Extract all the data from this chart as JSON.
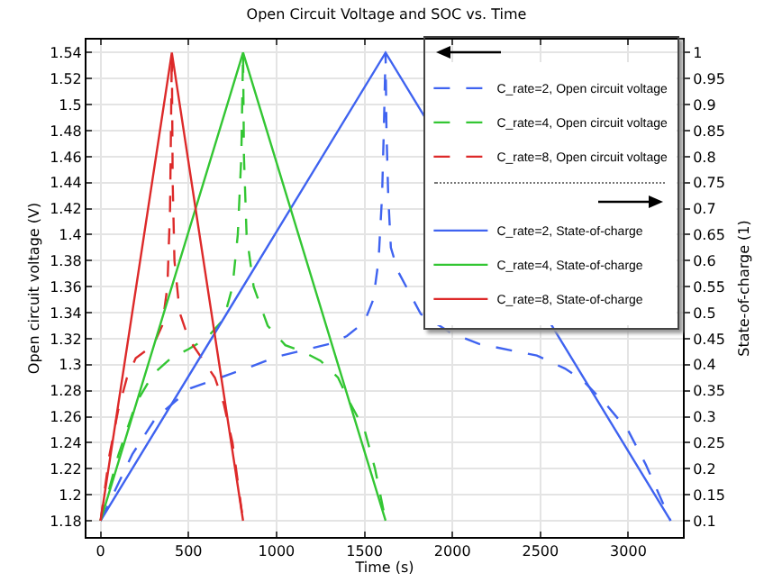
{
  "chart_data": {
    "type": "line",
    "title": "Open Circuit Voltage and SOC vs. Time",
    "xlabel": "Time (s)",
    "ylabel": "Open circuit voltage (V)",
    "y2label": "State-of-charge (1)",
    "xlim": [
      -80,
      3310
    ],
    "xticks": [
      0,
      500,
      1000,
      1500,
      2000,
      2500,
      3000
    ],
    "ylim": [
      1.1675,
      1.55
    ],
    "yticks": [
      1.18,
      1.2,
      1.22,
      1.24,
      1.26,
      1.28,
      1.3,
      1.32,
      1.34,
      1.36,
      1.38,
      1.4,
      1.42,
      1.44,
      1.46,
      1.48,
      1.5,
      1.52,
      1.54
    ],
    "y2lim": [
      0.06875,
      1.025
    ],
    "y2ticks": [
      0.1,
      0.15,
      0.2,
      0.25,
      0.3,
      0.35,
      0.4,
      0.45,
      0.5,
      0.55,
      0.6,
      0.65,
      0.7,
      0.75,
      0.8,
      0.85,
      0.9,
      0.95,
      1
    ],
    "grid": true,
    "legend": "top right",
    "marker": "none",
    "series": [
      {
        "name": "C_rate=2, Open circuit voltage",
        "color": "#3f63f0",
        "line_style": "dashed",
        "axis": "y",
        "x": [
          0,
          180,
          313,
          513,
          846,
          1000,
          1300,
          1400,
          1500,
          1550,
          1580,
          1600,
          1610,
          1620,
          1625,
          1635,
          1650,
          1690,
          1820,
          1985,
          2150,
          2480,
          2640,
          2740,
          2870,
          3000,
          3100,
          3240
        ],
        "values": [
          1.18,
          1.231,
          1.259,
          1.282,
          1.298,
          1.306,
          1.316,
          1.322,
          1.333,
          1.35,
          1.38,
          1.43,
          1.48,
          1.54,
          1.48,
          1.43,
          1.39,
          1.372,
          1.339,
          1.325,
          1.316,
          1.307,
          1.297,
          1.288,
          1.27,
          1.249,
          1.223,
          1.18
        ]
      },
      {
        "name": "C_rate=4, Open circuit voltage",
        "color": "#33c633",
        "line_style": "dashed",
        "axis": "y",
        "x": [
          0,
          100,
          200,
          300,
          400,
          500,
          600,
          700,
          750,
          780,
          800,
          810,
          815,
          830,
          870,
          950,
          1050,
          1150,
          1250,
          1350,
          1420,
          1500,
          1560,
          1620
        ],
        "values": [
          1.18,
          1.23,
          1.27,
          1.293,
          1.305,
          1.312,
          1.32,
          1.335,
          1.36,
          1.4,
          1.46,
          1.54,
          1.46,
          1.4,
          1.36,
          1.33,
          1.315,
          1.31,
          1.303,
          1.29,
          1.27,
          1.25,
          1.22,
          1.18
        ]
      },
      {
        "name": "C_rate=8, Open circuit voltage",
        "color": "#dd2a2a",
        "line_style": "dashed",
        "axis": "y",
        "x": [
          0,
          50,
          100,
          150,
          200,
          300,
          350,
          380,
          395,
          405,
          410,
          420,
          450,
          500,
          600,
          650,
          700,
          750,
          790,
          810
        ],
        "values": [
          1.18,
          1.23,
          1.265,
          1.29,
          1.305,
          1.315,
          1.33,
          1.36,
          1.42,
          1.54,
          1.44,
          1.38,
          1.34,
          1.32,
          1.3,
          1.29,
          1.27,
          1.24,
          1.2,
          1.18
        ]
      },
      {
        "name": "C_rate=2, State-of-charge",
        "color": "#3f63f0",
        "line_style": "solid",
        "axis": "y2",
        "x": [
          0,
          1620,
          3240
        ],
        "values": [
          0.1,
          1,
          0.1
        ]
      },
      {
        "name": "C_rate=4, State-of-charge",
        "color": "#33c633",
        "line_style": "solid",
        "axis": "y2",
        "x": [
          0,
          810,
          1620
        ],
        "values": [
          0.1,
          1,
          0.1
        ]
      },
      {
        "name": "C_rate=8, State-of-charge",
        "color": "#dd2a2a",
        "line_style": "solid",
        "axis": "y2",
        "x": [
          0,
          405,
          810
        ],
        "values": [
          0.1,
          1,
          0.1
        ]
      }
    ]
  }
}
